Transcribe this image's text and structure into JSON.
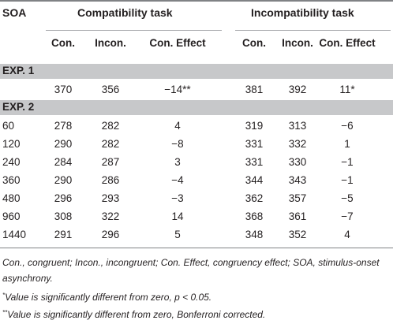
{
  "header": {
    "soa": "SOA",
    "group_compat": "Compatibility task",
    "group_incompat": "Incompatibility task",
    "sub": [
      "Con.",
      "Incon.",
      "Con. Effect",
      "Con.",
      "Incon.",
      "Con. Effect"
    ]
  },
  "sections": [
    {
      "label": "EXP. 1",
      "rows": [
        [
          "",
          "370",
          "356",
          "−14**",
          "381",
          "392",
          "11*"
        ]
      ]
    },
    {
      "label": "EXP. 2",
      "rows": [
        [
          "60",
          "278",
          "282",
          "4",
          "319",
          "313",
          "−6"
        ],
        [
          "120",
          "290",
          "282",
          "−8",
          "331",
          "332",
          "1"
        ],
        [
          "240",
          "284",
          "287",
          "3",
          "331",
          "330",
          "−1"
        ],
        [
          "360",
          "290",
          "286",
          "−4",
          "344",
          "343",
          "−1"
        ],
        [
          "480",
          "296",
          "293",
          "−3",
          "362",
          "357",
          "−5"
        ],
        [
          "960",
          "308",
          "322",
          "14",
          "368",
          "361",
          "−7"
        ],
        [
          "1440",
          "291",
          "296",
          "5",
          "348",
          "352",
          "4"
        ]
      ]
    }
  ],
  "footnotes": {
    "abbrev": "Con., congruent; Incon., incongruent; Con. Effect, congruency effect; SOA, stimulus-onset asynchrony.",
    "note1_mark": "*",
    "note1": "Value is significantly different from zero, p < 0.05.",
    "note2_mark": "**",
    "note2": "Value is significantly different from zero, Bonferroni corrected."
  }
}
